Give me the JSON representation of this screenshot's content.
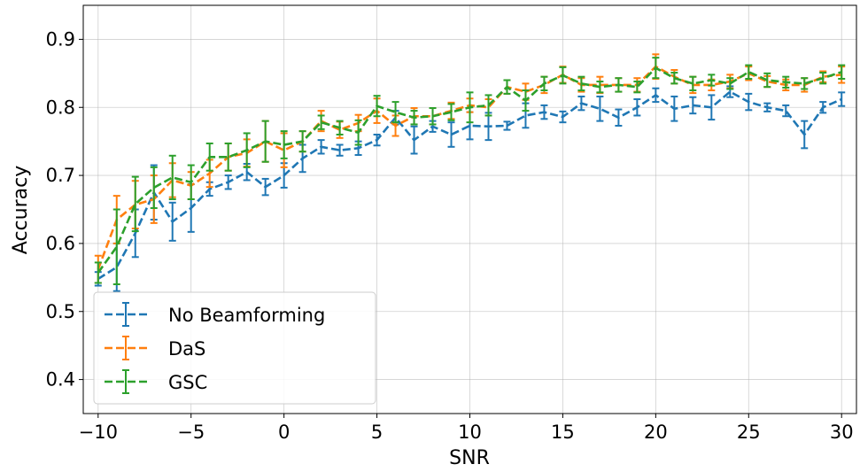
{
  "chart_data": {
    "type": "line",
    "title": "",
    "xlabel": "SNR",
    "ylabel": "Accuracy",
    "xlim": [
      -10.8,
      30.8
    ],
    "ylim": [
      0.35,
      0.95
    ],
    "xticks": [
      -10,
      -5,
      0,
      5,
      10,
      15,
      20,
      25,
      30
    ],
    "xtick_labels": [
      "−10",
      "−5",
      "0",
      "5",
      "10",
      "15",
      "20",
      "25",
      "30"
    ],
    "yticks": [
      0.4,
      0.5,
      0.6,
      0.7,
      0.8,
      0.9
    ],
    "ytick_labels": [
      "0.4",
      "0.5",
      "0.6",
      "0.7",
      "0.8",
      "0.9"
    ],
    "grid": true,
    "legend_position": "lower-left",
    "x": [
      -10,
      -9,
      -8,
      -7,
      -6,
      -5,
      -4,
      -3,
      -2,
      -1,
      0,
      1,
      2,
      3,
      4,
      5,
      6,
      7,
      8,
      9,
      10,
      11,
      12,
      13,
      14,
      15,
      16,
      17,
      18,
      19,
      20,
      21,
      22,
      23,
      24,
      25,
      26,
      27,
      28,
      29,
      30
    ],
    "series": [
      {
        "name": "No Beamforming",
        "color": "#1f77b4",
        "values": [
          0.548,
          0.565,
          0.615,
          0.675,
          0.632,
          0.652,
          0.68,
          0.69,
          0.705,
          0.683,
          0.7,
          0.725,
          0.742,
          0.737,
          0.74,
          0.752,
          0.785,
          0.752,
          0.772,
          0.76,
          0.773,
          0.772,
          0.773,
          0.788,
          0.793,
          0.786,
          0.806,
          0.798,
          0.785,
          0.8,
          0.818,
          0.798,
          0.803,
          0.8,
          0.823,
          0.808,
          0.8,
          0.795,
          0.76,
          0.8,
          0.812
        ],
        "errors": [
          0.01,
          0.035,
          0.035,
          0.04,
          0.028,
          0.035,
          0.01,
          0.01,
          0.012,
          0.012,
          0.018,
          0.02,
          0.01,
          0.008,
          0.01,
          0.008,
          0.01,
          0.02,
          0.008,
          0.018,
          0.02,
          0.02,
          0.006,
          0.018,
          0.01,
          0.008,
          0.01,
          0.018,
          0.012,
          0.012,
          0.01,
          0.018,
          0.012,
          0.018,
          0.008,
          0.012,
          0.006,
          0.008,
          0.02,
          0.008,
          0.01
        ]
      },
      {
        "name": "DaS",
        "color": "#ff7f0e",
        "values": [
          0.562,
          0.635,
          0.657,
          0.665,
          0.693,
          0.685,
          0.703,
          0.727,
          0.733,
          0.75,
          0.737,
          0.75,
          0.78,
          0.767,
          0.777,
          0.795,
          0.773,
          0.787,
          0.787,
          0.795,
          0.803,
          0.8,
          0.83,
          0.823,
          0.833,
          0.848,
          0.833,
          0.833,
          0.833,
          0.833,
          0.86,
          0.845,
          0.833,
          0.833,
          0.838,
          0.85,
          0.838,
          0.833,
          0.833,
          0.845,
          0.848
        ],
        "errors": [
          0.02,
          0.035,
          0.035,
          0.035,
          0.025,
          0.02,
          0.02,
          0.02,
          0.02,
          0.03,
          0.025,
          0.015,
          0.015,
          0.012,
          0.012,
          0.018,
          0.015,
          0.012,
          0.012,
          0.012,
          0.01,
          0.012,
          0.01,
          0.012,
          0.012,
          0.012,
          0.01,
          0.012,
          0.01,
          0.01,
          0.018,
          0.01,
          0.012,
          0.008,
          0.01,
          0.01,
          0.008,
          0.008,
          0.01,
          0.008,
          0.012
        ]
      },
      {
        "name": "GSC",
        "color": "#2ca02c",
        "values": [
          0.557,
          0.595,
          0.658,
          0.682,
          0.697,
          0.69,
          0.727,
          0.727,
          0.737,
          0.75,
          0.745,
          0.75,
          0.778,
          0.77,
          0.763,
          0.802,
          0.793,
          0.785,
          0.787,
          0.793,
          0.8,
          0.803,
          0.83,
          0.81,
          0.835,
          0.847,
          0.835,
          0.83,
          0.833,
          0.83,
          0.858,
          0.843,
          0.835,
          0.84,
          0.835,
          0.852,
          0.84,
          0.837,
          0.835,
          0.843,
          0.852
        ],
        "errors": [
          0.015,
          0.055,
          0.04,
          0.03,
          0.032,
          0.025,
          0.02,
          0.02,
          0.025,
          0.03,
          0.02,
          0.015,
          0.01,
          0.01,
          0.018,
          0.015,
          0.015,
          0.01,
          0.012,
          0.012,
          0.022,
          0.015,
          0.01,
          0.015,
          0.01,
          0.012,
          0.01,
          0.008,
          0.01,
          0.008,
          0.015,
          0.008,
          0.01,
          0.008,
          0.008,
          0.01,
          0.01,
          0.008,
          0.008,
          0.008,
          0.01
        ]
      }
    ]
  }
}
